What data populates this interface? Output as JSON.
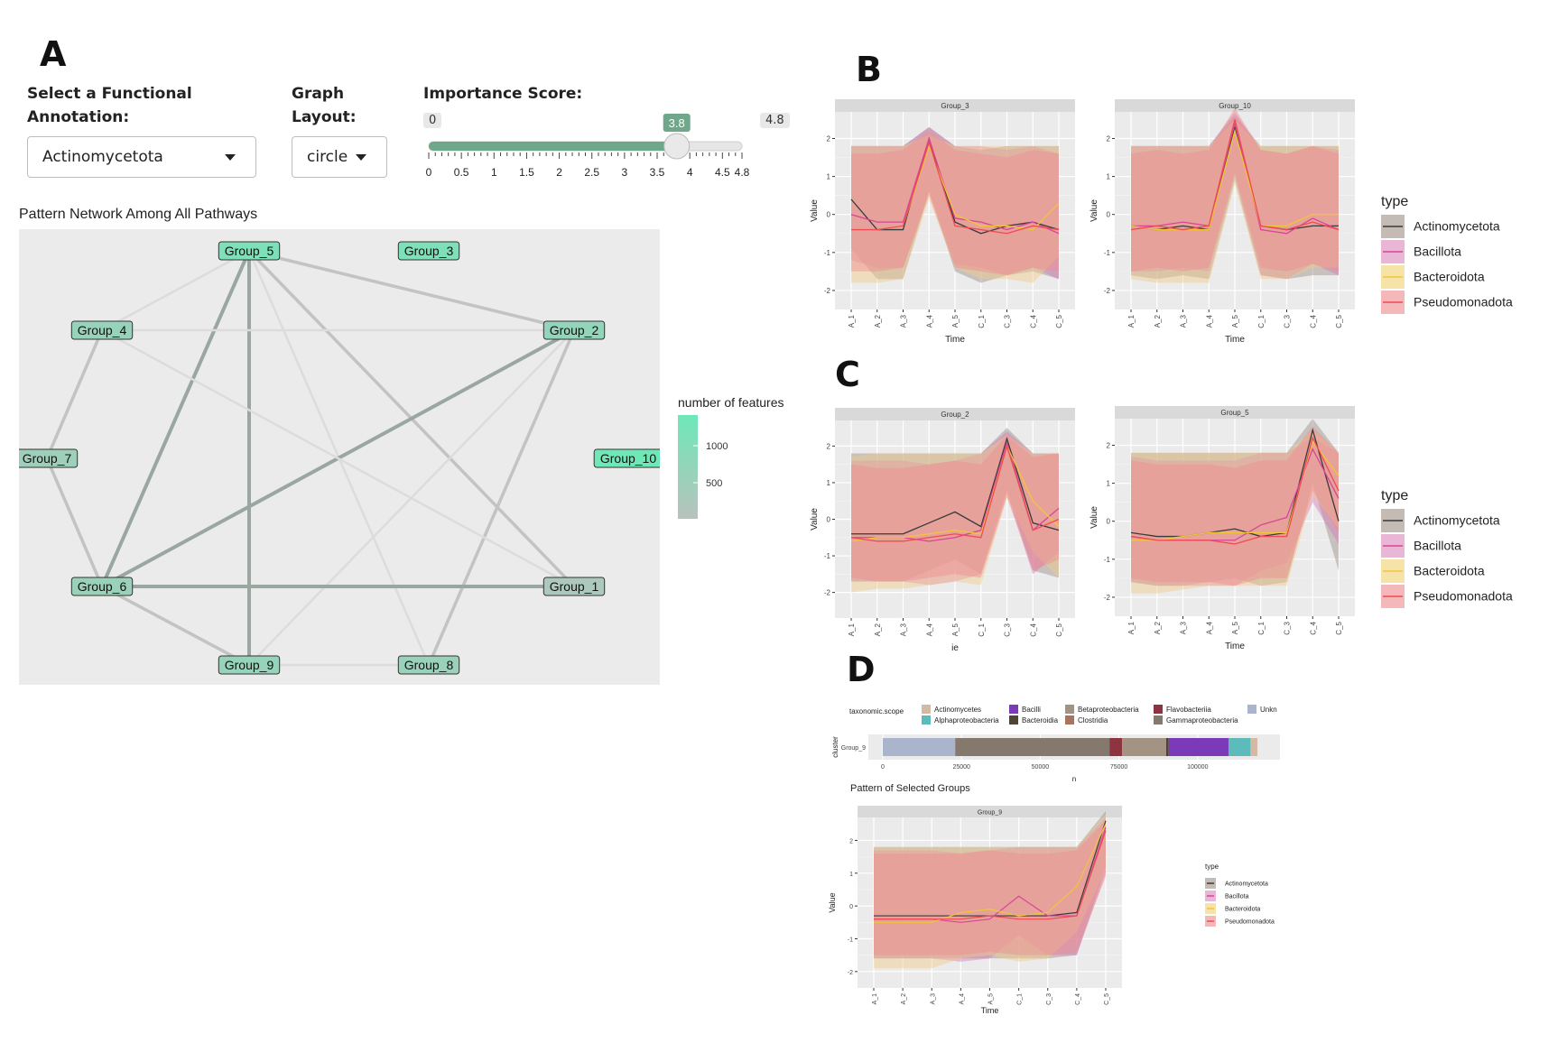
{
  "panels": {
    "a": "A",
    "b": "B",
    "c": "C",
    "d": "D"
  },
  "controls": {
    "annotation_label": "Select a Functional\nAnnotation:",
    "annotation_value": "Actinomycetota",
    "layout_label": "Graph\nLayout:",
    "layout_value": "circle",
    "importance_label": "Importance Score:",
    "slider": {
      "min": 0,
      "max": 4.8,
      "value": 3.8,
      "min_label": "0",
      "max_label": "4.8",
      "value_label": "3.8",
      "ticks": [
        "0",
        "0.5",
        "1",
        "1.5",
        "2",
        "2.5",
        "3",
        "3.5",
        "4",
        "4.5",
        "4.8"
      ]
    }
  },
  "network": {
    "title": "Pattern Network Among All Pathways",
    "legend_title": "number of features",
    "legend_ticks": [
      "1000",
      "500"
    ],
    "nodes": [
      {
        "id": "Group_5",
        "features": 1100
      },
      {
        "id": "Group_3",
        "features": 1100
      },
      {
        "id": "Group_4",
        "features": 750
      },
      {
        "id": "Group_2",
        "features": 800
      },
      {
        "id": "Group_7",
        "features": 650
      },
      {
        "id": "Group_10",
        "features": 1300
      },
      {
        "id": "Group_6",
        "features": 700
      },
      {
        "id": "Group_1",
        "features": 450
      },
      {
        "id": "Group_9",
        "features": 750
      },
      {
        "id": "Group_8",
        "features": 700
      }
    ],
    "edges": [
      [
        "Group_5",
        "Group_2",
        2
      ],
      [
        "Group_5",
        "Group_6",
        3
      ],
      [
        "Group_5",
        "Group_9",
        3
      ],
      [
        "Group_5",
        "Group_4",
        1
      ],
      [
        "Group_5",
        "Group_1",
        2
      ],
      [
        "Group_5",
        "Group_8",
        1
      ],
      [
        "Group_4",
        "Group_2",
        1
      ],
      [
        "Group_4",
        "Group_7",
        2
      ],
      [
        "Group_7",
        "Group_6",
        2
      ],
      [
        "Group_2",
        "Group_6",
        3
      ],
      [
        "Group_2",
        "Group_8",
        2
      ],
      [
        "Group_2",
        "Group_9",
        1
      ],
      [
        "Group_6",
        "Group_1",
        3
      ],
      [
        "Group_6",
        "Group_9",
        2
      ],
      [
        "Group_9",
        "Group_8",
        1
      ],
      [
        "Group_4",
        "Group_1",
        1
      ]
    ]
  },
  "colors": {
    "Actinomycetota": "#3a3a3a",
    "Bacillota": "#d9449b",
    "Bacteroidota": "#f0c53a",
    "Pseudomonadota": "#ee4b52",
    "node_low": "#b8c2bd",
    "node_high": "#6ee8b7",
    "slider": "#6fa78a"
  },
  "pattern_legend": {
    "title": "type",
    "items": [
      "Actinomycetota",
      "Bacillota",
      "Bacteroidota",
      "Pseudomonadota"
    ]
  },
  "chart_data": [
    {
      "type": "line",
      "panel": "B",
      "title": "Group_3",
      "xlabel": "Time",
      "ylabel": "Value",
      "x": [
        "A_1",
        "A_2",
        "A_3",
        "A_4",
        "A_5",
        "C_1",
        "C_3",
        "C_4",
        "C_5"
      ],
      "yticks": [
        "2",
        "1",
        "0",
        "-1",
        "-2"
      ],
      "ylim": [
        -2.5,
        2.7
      ],
      "series": [
        {
          "name": "Actinomycetota",
          "values": [
            0.4,
            -0.4,
            -0.4,
            2.0,
            -0.2,
            -0.5,
            -0.3,
            -0.2,
            -0.4
          ]
        },
        {
          "name": "Bacillota",
          "values": [
            0.0,
            -0.2,
            -0.2,
            2.0,
            -0.1,
            -0.2,
            -0.4,
            -0.2,
            -0.5
          ]
        },
        {
          "name": "Bacteroidota",
          "values": [
            -0.4,
            -0.4,
            -0.3,
            1.8,
            0.0,
            -0.3,
            -0.3,
            -0.4,
            0.3
          ]
        },
        {
          "name": "Pseudomonadota",
          "values": [
            -0.4,
            -0.4,
            -0.3,
            1.9,
            -0.3,
            -0.4,
            -0.5,
            -0.3,
            -0.4
          ]
        }
      ]
    },
    {
      "type": "line",
      "panel": "B",
      "title": "Group_10",
      "xlabel": "Time",
      "ylabel": "Value",
      "x": [
        "A_1",
        "A_2",
        "A_3",
        "A_4",
        "A_5",
        "C_1",
        "C_3",
        "C_4",
        "C_5"
      ],
      "yticks": [
        "2",
        "1",
        "0",
        "-1",
        "-2"
      ],
      "ylim": [
        -2.5,
        2.7
      ],
      "series": [
        {
          "name": "Actinomycetota",
          "values": [
            -0.3,
            -0.4,
            -0.3,
            -0.4,
            2.3,
            -0.3,
            -0.4,
            -0.3,
            -0.3
          ]
        },
        {
          "name": "Bacillota",
          "values": [
            -0.3,
            -0.3,
            -0.2,
            -0.3,
            2.4,
            -0.4,
            -0.5,
            -0.1,
            -0.4
          ]
        },
        {
          "name": "Bacteroidota",
          "values": [
            -0.3,
            -0.4,
            -0.4,
            -0.4,
            2.2,
            -0.3,
            -0.3,
            0.0,
            0.0
          ]
        },
        {
          "name": "Pseudomonadota",
          "values": [
            -0.4,
            -0.3,
            -0.4,
            -0.3,
            2.5,
            -0.3,
            -0.4,
            -0.2,
            -0.4
          ]
        }
      ]
    },
    {
      "type": "line",
      "panel": "C",
      "title": "Group_2",
      "xlabel": "ie",
      "ylabel": "Value",
      "x": [
        "A_1",
        "A_2",
        "A_3",
        "A_4",
        "A_5",
        "C_1",
        "C_3",
        "C_4",
        "C_5"
      ],
      "yticks": [
        "2",
        "1",
        "0",
        "-1",
        "-2"
      ],
      "ylim": [
        -2.7,
        2.7
      ],
      "series": [
        {
          "name": "Actinomycetota",
          "values": [
            -0.4,
            -0.4,
            -0.4,
            -0.1,
            0.2,
            -0.2,
            2.2,
            -0.1,
            -0.3
          ]
        },
        {
          "name": "Bacillota",
          "values": [
            -0.5,
            -0.5,
            -0.5,
            -0.6,
            -0.5,
            -0.3,
            2.1,
            -0.3,
            0.3
          ]
        },
        {
          "name": "Bacteroidota",
          "values": [
            -0.6,
            -0.5,
            -0.5,
            -0.4,
            -0.3,
            -0.4,
            2.0,
            0.5,
            -0.2
          ]
        },
        {
          "name": "Pseudomonadota",
          "values": [
            -0.5,
            -0.6,
            -0.6,
            -0.5,
            -0.4,
            -0.5,
            2.0,
            -0.3,
            0.0
          ]
        }
      ]
    },
    {
      "type": "line",
      "panel": "C",
      "title": "Group_5",
      "xlabel": "Time",
      "ylabel": "Value",
      "x": [
        "A_1",
        "A_2",
        "A_3",
        "A_4",
        "A_5",
        "C_1",
        "C_3",
        "C_4",
        "C_5"
      ],
      "yticks": [
        "2",
        "1",
        "0",
        "-1",
        "-2"
      ],
      "ylim": [
        -2.5,
        2.7
      ],
      "series": [
        {
          "name": "Actinomycetota",
          "values": [
            -0.3,
            -0.4,
            -0.4,
            -0.3,
            -0.2,
            -0.4,
            -0.3,
            2.4,
            0.0
          ]
        },
        {
          "name": "Bacillota",
          "values": [
            -0.4,
            -0.5,
            -0.5,
            -0.5,
            -0.5,
            -0.1,
            0.1,
            1.9,
            0.6
          ]
        },
        {
          "name": "Bacteroidota",
          "values": [
            -0.5,
            -0.5,
            -0.4,
            -0.3,
            -0.3,
            -0.3,
            -0.3,
            2.1,
            1.2
          ]
        },
        {
          "name": "Pseudomonadota",
          "values": [
            -0.4,
            -0.5,
            -0.5,
            -0.5,
            -0.6,
            -0.4,
            -0.4,
            2.2,
            0.8
          ]
        }
      ]
    },
    {
      "type": "bar",
      "panel": "D",
      "title": "",
      "legend_title": "taxonomic.scope",
      "xlabel": "n",
      "ylabel": "cluster",
      "categories": [
        "Group_9"
      ],
      "xlim": [
        0,
        125000
      ],
      "xticks": [
        "0",
        "25000",
        "50000",
        "75000",
        "100000"
      ],
      "series": [
        {
          "name": "Unkn",
          "value": 23000,
          "color": "#aab4cc"
        },
        {
          "name": "Gammaproteobacteria",
          "value": 49000,
          "color": "#85786c"
        },
        {
          "name": "Flavobacteriia",
          "value": 4000,
          "color": "#8e3340"
        },
        {
          "name": "Betaproteobacteria",
          "value": 14000,
          "color": "#a39383"
        },
        {
          "name": "Bacteroidia",
          "value": 800,
          "color": "#4f4535"
        },
        {
          "name": "Bacilli",
          "value": 19000,
          "color": "#7b3ab7"
        },
        {
          "name": "Alphaproteobacteria",
          "value": 7000,
          "color": "#5cbcbb"
        },
        {
          "name": "Actinomycetes",
          "value": 2200,
          "color": "#d4b9a4"
        },
        {
          "name": "Clostridia",
          "value": 0,
          "color": "#a8745f"
        }
      ],
      "legend_order": [
        "Actinomycetes",
        "Alphaproteobacteria",
        "Bacilli",
        "Bacteroidia",
        "Betaproteobacteria",
        "Clostridia",
        "Flavobacteriia",
        "Gammaproteobacteria",
        "Unkn"
      ]
    },
    {
      "type": "line",
      "panel": "D",
      "title": "Pattern of Selected Groups",
      "facet": "Group_9",
      "xlabel": "Time",
      "ylabel": "Value",
      "x": [
        "A_1",
        "A_2",
        "A_3",
        "A_4",
        "A_5",
        "C_1",
        "C_3",
        "C_4",
        "C_5"
      ],
      "yticks": [
        "2",
        "1",
        "0",
        "-1",
        "-2"
      ],
      "ylim": [
        -2.5,
        2.7
      ],
      "series": [
        {
          "name": "Actinomycetota",
          "values": [
            -0.3,
            -0.3,
            -0.3,
            -0.3,
            -0.3,
            -0.3,
            -0.3,
            -0.2,
            2.6
          ]
        },
        {
          "name": "Bacillota",
          "values": [
            -0.4,
            -0.4,
            -0.4,
            -0.5,
            -0.4,
            0.3,
            -0.3,
            -0.3,
            2.4
          ]
        },
        {
          "name": "Bacteroidota",
          "values": [
            -0.5,
            -0.5,
            -0.5,
            -0.2,
            -0.1,
            -0.3,
            -0.2,
            0.6,
            2.5
          ]
        },
        {
          "name": "Pseudomonadota",
          "values": [
            -0.4,
            -0.4,
            -0.4,
            -0.4,
            -0.3,
            -0.4,
            -0.4,
            -0.3,
            2.3
          ]
        }
      ]
    }
  ]
}
